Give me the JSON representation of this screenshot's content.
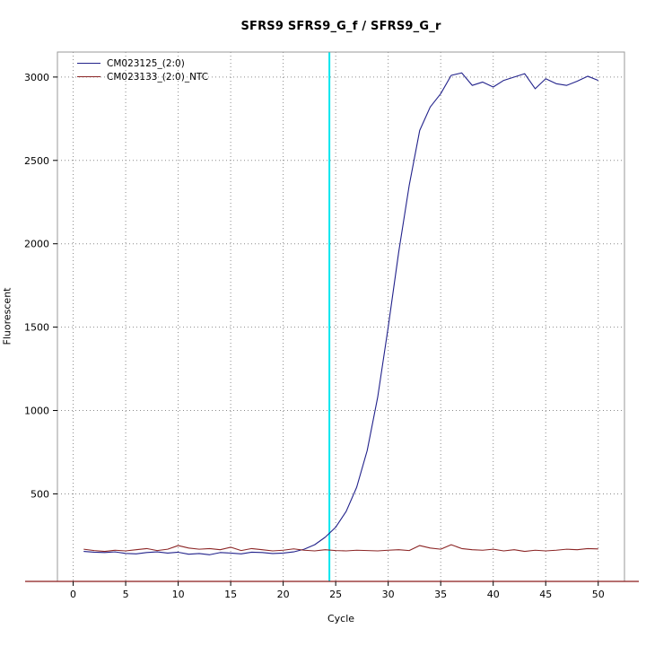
{
  "chart_data": {
    "type": "line",
    "title": "SFRS9  SFRS9_G_f / SFRS9_G_r",
    "xlabel": "Cycle",
    "ylabel": "Fluorescent",
    "xlim": [
      -1.5,
      52.5
    ],
    "ylim": [
      -25,
      3150
    ],
    "xticks": [
      0,
      5,
      10,
      15,
      20,
      25,
      30,
      35,
      40,
      45,
      50
    ],
    "yticks": [
      500,
      1000,
      1500,
      2000,
      2500,
      3000
    ],
    "grid": true,
    "grid_color": "#8a8a8a",
    "border_color": "#9a9a9a",
    "legend_position": "top-left",
    "threshold_line": {
      "x": 24.4,
      "color": "#00e6ee"
    },
    "bottom_line": {
      "y": 0,
      "color": "#8b1a1a"
    },
    "x": [
      1,
      2,
      3,
      4,
      5,
      6,
      7,
      8,
      9,
      10,
      11,
      12,
      13,
      14,
      15,
      16,
      17,
      18,
      19,
      20,
      21,
      22,
      23,
      24,
      25,
      26,
      27,
      28,
      29,
      30,
      31,
      32,
      33,
      34,
      35,
      36,
      37,
      38,
      39,
      40,
      41,
      42,
      43,
      44,
      45,
      46,
      47,
      48,
      49,
      50
    ],
    "series": [
      {
        "name": "CM023125_(2:0)",
        "color": "#22228b",
        "values": [
          155,
          150,
          148,
          152,
          143,
          140,
          148,
          152,
          145,
          150,
          138,
          142,
          135,
          148,
          145,
          140,
          150,
          148,
          142,
          145,
          152,
          168,
          195,
          240,
          300,
          395,
          540,
          760,
          1080,
          1500,
          1950,
          2350,
          2680,
          2820,
          2900,
          3010,
          3025,
          2950,
          2970,
          2940,
          2980,
          3000,
          3020,
          2930,
          2990,
          2960,
          2950,
          2975,
          3005,
          2980
        ]
      },
      {
        "name": "CM023133_(2:0)_NTC",
        "color": "#8b2525",
        "values": [
          168,
          160,
          155,
          162,
          158,
          165,
          172,
          160,
          168,
          190,
          175,
          168,
          172,
          165,
          180,
          160,
          172,
          165,
          158,
          162,
          170,
          162,
          158,
          165,
          160,
          158,
          162,
          160,
          158,
          162,
          165,
          160,
          190,
          175,
          168,
          195,
          172,
          165,
          162,
          168,
          158,
          165,
          155,
          162,
          158,
          162,
          168,
          165,
          172,
          170
        ]
      }
    ]
  }
}
